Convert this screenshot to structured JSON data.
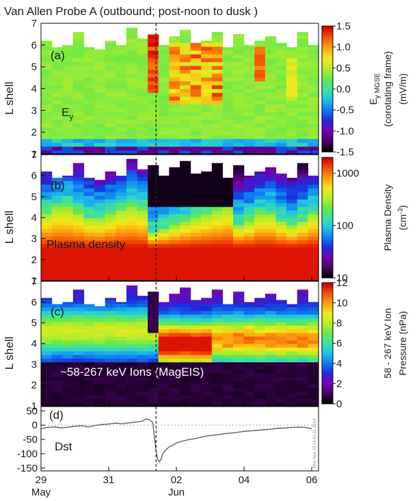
{
  "title": "Van Allen Probe A (outbound; post-noon to dusk )",
  "colors": {
    "scale": [
      "#000000",
      "#4a0068",
      "#7a00b4",
      "#1d2cd9",
      "#0e7cf0",
      "#1fc4e6",
      "#3fe0a0",
      "#66e84c",
      "#b8ec28",
      "#f2e81c",
      "#fda40e",
      "#f55406",
      "#d60000"
    ],
    "dst_line": "#555555",
    "dashed": "#222222"
  },
  "x_axis": {
    "ticks": [
      "29",
      "31",
      "02",
      "04",
      "06"
    ],
    "tick_positions_days": [
      0,
      2,
      4,
      6,
      8
    ],
    "month_labels": [
      {
        "text": "May",
        "day": 0
      },
      {
        "text": "Jun",
        "day": 4
      }
    ],
    "range_days": [
      0,
      8.2
    ],
    "storm_onset_day": 3.4
  },
  "chart_data": [
    {
      "type": "heatmap",
      "panel_label": "(a)",
      "annotation": "E",
      "annotation_sub": "y",
      "ylabel": "L shell",
      "yticks": [
        1,
        2,
        3,
        4,
        5,
        6,
        7
      ],
      "ylim": [
        1,
        7
      ],
      "colorbar": {
        "label_main": "E",
        "label_sub": "y MGSE",
        "label_line2": "(corotating frame)",
        "label_line3": "(mV/m)",
        "ticks": [
          1.5,
          1.0,
          0.5,
          0.0,
          -0.5,
          -1.0,
          -1.5
        ],
        "range": [
          -1.5,
          1.5
        ],
        "scale": "linear"
      },
      "description_values": "Ey mostly 0 to 0.3 mV/m; enhancements up to ~1.5 mV/m at L 4-6 near storm onset and 1-3 June"
    },
    {
      "type": "heatmap",
      "panel_label": "(b)",
      "annotation": "Plasma density",
      "ylabel": "L shell",
      "yticks": [
        1,
        2,
        3,
        4,
        5,
        6,
        7
      ],
      "ylim": [
        1,
        7
      ],
      "colorbar": {
        "label_main": "Plasma Density",
        "label_line2": "(cm",
        "label_sup": "-3",
        "label_close": ")",
        "ticks": [
          1000,
          100,
          10
        ],
        "range": [
          10,
          2000
        ],
        "scale": "log"
      }
    },
    {
      "type": "heatmap",
      "panel_label": "(c)",
      "annotation": "~58-267 keV Ions (MagEIS)",
      "ylabel": "L shell",
      "yticks": [
        1,
        2,
        3,
        4,
        5,
        6,
        7
      ],
      "ylim": [
        1,
        7
      ],
      "colorbar": {
        "label_main": "58 - 267 keV Ion",
        "label_line2": "Pressure (nPa)",
        "ticks": [
          12,
          10,
          8,
          6,
          4,
          2,
          0
        ],
        "range": [
          0,
          12
        ],
        "scale": "linear"
      }
    },
    {
      "type": "line",
      "panel_label": "(d)",
      "annotation": "Dst",
      "yticks": [
        50,
        0,
        -50,
        -100,
        -150
      ],
      "ylim": [
        -160,
        65
      ],
      "series": [
        {
          "x": [
            0,
            0.2,
            0.4,
            0.6,
            0.8,
            1.0,
            1.2,
            1.4,
            1.6,
            1.8,
            2.0,
            2.2,
            2.4,
            2.6,
            2.8,
            3.0,
            3.1,
            3.2,
            3.3,
            3.35,
            3.4,
            3.45,
            3.5,
            3.55,
            3.6,
            3.7,
            3.8,
            3.9,
            4.0,
            4.2,
            4.4,
            4.6,
            4.8,
            5.0,
            5.2,
            5.4,
            5.6,
            5.8,
            6.0,
            6.2,
            6.4,
            6.6,
            6.8,
            7.0,
            7.2,
            7.4,
            7.6,
            7.8,
            8.0
          ],
          "values": [
            -12,
            -8,
            -6,
            -10,
            -7,
            -4,
            -2,
            -6,
            -1,
            2,
            4,
            7,
            5,
            8,
            11,
            14,
            22,
            18,
            10,
            -40,
            -90,
            -120,
            -128,
            -118,
            -100,
            -85,
            -75,
            -70,
            -62,
            -55,
            -50,
            -46,
            -40,
            -36,
            -34,
            -30,
            -28,
            -25,
            -22,
            -20,
            -18,
            -16,
            -14,
            -11,
            -10,
            -8,
            -7,
            -8,
            -12
          ]
        }
      ]
    }
  ],
  "watermark": "Mon Nov 10 14:41:21 2014"
}
